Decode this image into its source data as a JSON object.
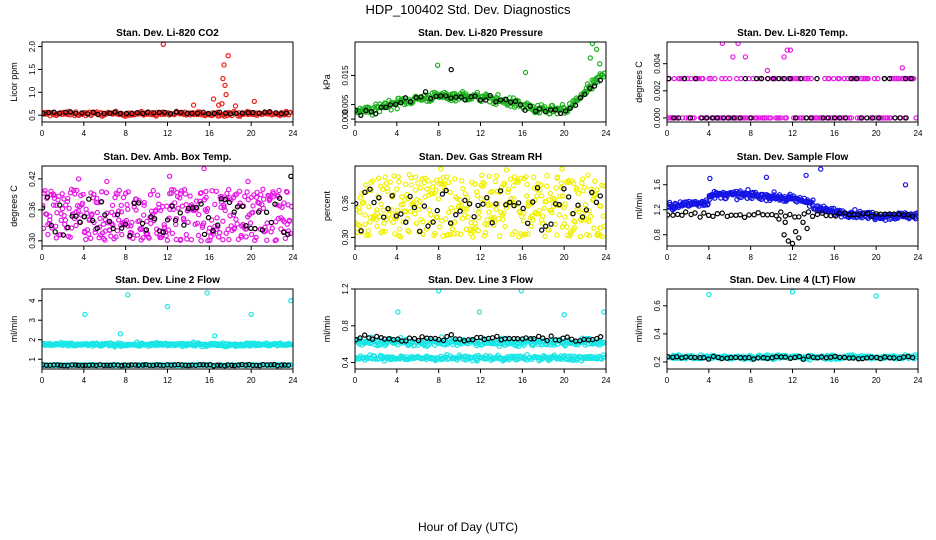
{
  "title": "HDP_100402  Std. Dev. Diagnostics",
  "xlabel": "Hour of Day (UTC)",
  "chart_data": [
    {
      "type": "scatter",
      "title": "Stan. Dev. Li-820 CO2",
      "ylabel": "Licor ppm",
      "xlim": [
        0,
        24
      ],
      "ylim": [
        0.35,
        2.1
      ],
      "xticks": [
        "0",
        "4",
        "8",
        "12",
        "16",
        "20",
        "24"
      ],
      "yticks": [
        "0.5",
        "1.0",
        "1.5",
        "2.0"
      ],
      "ytick_values": [
        0.5,
        1.0,
        1.5,
        2.0
      ],
      "series": [
        {
          "name": "main",
          "color": "#e8201c",
          "gen": {
            "kind": "noise",
            "n": 220,
            "base": 0.53,
            "amp": 0.08
          },
          "points": [
            [
              11.6,
              2.05
            ],
            [
              17.8,
              1.8
            ],
            [
              17.4,
              1.6
            ],
            [
              17.3,
              1.3
            ],
            [
              17.5,
              1.15
            ],
            [
              17.6,
              0.95
            ],
            [
              16.4,
              0.85
            ],
            [
              17.2,
              0.75
            ],
            [
              16.9,
              0.72
            ],
            [
              18.5,
              0.7
            ],
            [
              20.3,
              0.8
            ],
            [
              14.5,
              0.72
            ]
          ]
        },
        {
          "name": "reference",
          "color": "#000000",
          "gen": {
            "kind": "noise",
            "n": 45,
            "base": 0.55,
            "amp": 0.05
          },
          "points": []
        }
      ]
    },
    {
      "type": "scatter",
      "title": "Stan. Dev. Li-820 Pressure",
      "ylabel": "kPa",
      "xlim": [
        0,
        24
      ],
      "ylim": [
        -0.001,
        0.0265
      ],
      "xticks": [
        "0",
        "4",
        "8",
        "12",
        "16",
        "20",
        "24"
      ],
      "yticks": [
        "0.000",
        "0.005",
        "0.015"
      ],
      "ytick_values": [
        0.0,
        0.005,
        0.015
      ],
      "series": [
        {
          "name": "main",
          "color": "#1fb31f",
          "gen": {
            "kind": "pressure",
            "n": 300
          },
          "points": [
            [
              7.9,
              0.0185
            ],
            [
              16.3,
              0.016
            ],
            [
              22.7,
              0.026
            ],
            [
              23.1,
              0.024
            ],
            [
              22.5,
              0.021
            ],
            [
              23.4,
              0.019
            ]
          ]
        },
        {
          "name": "reference",
          "color": "#000000",
          "gen": {
            "kind": "pressure",
            "n": 50
          },
          "points": [
            [
              9.2,
              0.017
            ]
          ]
        }
      ]
    },
    {
      "type": "scatter",
      "title": "Stan. Dev. Li-820 Temp.",
      "ylabel": "degrees C",
      "xlim": [
        0,
        24
      ],
      "ylim": [
        -0.0003,
        0.0056
      ],
      "xticks": [
        "0",
        "4",
        "8",
        "12",
        "16",
        "20",
        "24"
      ],
      "yticks": [
        "0.000",
        "0.002",
        "0.004"
      ],
      "ytick_values": [
        0.0,
        0.002,
        0.004
      ],
      "series": [
        {
          "name": "main",
          "color": "#e619e6",
          "gen": {
            "kind": "temp",
            "n": 170
          },
          "points": [
            [
              5.3,
              0.0055
            ],
            [
              6.8,
              0.0055
            ],
            [
              7.5,
              0.0045
            ],
            [
              11.2,
              0.0045
            ],
            [
              11.5,
              0.005
            ],
            [
              11.8,
              0.005
            ],
            [
              9.6,
              0.0035
            ],
            [
              22.5,
              0.0037
            ],
            [
              6.3,
              0.0045
            ]
          ]
        },
        {
          "name": "reference",
          "color": "#000000",
          "gen": {
            "kind": "temp",
            "n": 45
          },
          "points": [
            [
              22.8,
              0.0029
            ]
          ]
        }
      ]
    },
    {
      "type": "scatter",
      "title": "Stan. Dev. Amb. Box Temp.",
      "ylabel": "degrees C",
      "xlim": [
        0,
        24
      ],
      "ylim": [
        0.29,
        0.445
      ],
      "xticks": [
        "0",
        "4",
        "8",
        "12",
        "16",
        "20",
        "24"
      ],
      "yticks": [
        "0.30",
        "0.36",
        "0.42"
      ],
      "ytick_values": [
        0.3,
        0.36,
        0.42
      ],
      "series": [
        {
          "name": "main",
          "color": "#e619e6",
          "gen": {
            "kind": "uniform",
            "n": 380,
            "lo": 0.3,
            "hi": 0.4
          },
          "points": [
            [
              15.5,
              0.44
            ],
            [
              3.5,
              0.42
            ],
            [
              12.2,
              0.425
            ],
            [
              6.2,
              0.415
            ],
            [
              19.7,
              0.415
            ]
          ]
        },
        {
          "name": "reference",
          "color": "#000000",
          "gen": {
            "kind": "uniform",
            "n": 60,
            "lo": 0.31,
            "hi": 0.385
          },
          "points": [
            [
              23.8,
              0.425
            ]
          ]
        }
      ]
    },
    {
      "type": "scatter",
      "title": "Stan. Dev. Gas Stream RH",
      "ylabel": "percent",
      "xlim": [
        0,
        24
      ],
      "ylim": [
        0.285,
        0.425
      ],
      "xticks": [
        "0",
        "4",
        "8",
        "12",
        "16",
        "20",
        "24"
      ],
      "yticks": [
        "0.30",
        "0.36"
      ],
      "ytick_values": [
        0.3,
        0.36
      ],
      "series": [
        {
          "name": "main",
          "color": "#f0f000",
          "gen": {
            "kind": "uniform",
            "n": 380,
            "lo": 0.3,
            "hi": 0.41
          },
          "points": [
            [
              8.2,
              0.42
            ],
            [
              14.5,
              0.418
            ],
            [
              19.8,
              0.42
            ]
          ]
        },
        {
          "name": "reference",
          "color": "#000000",
          "gen": {
            "kind": "uniform",
            "n": 55,
            "lo": 0.31,
            "hi": 0.39
          },
          "points": []
        }
      ]
    },
    {
      "type": "scatter",
      "title": "Stan. Dev. Sample Flow",
      "ylabel": "ml/min",
      "xlim": [
        0,
        24
      ],
      "ylim": [
        0.62,
        1.9
      ],
      "xticks": [
        "0",
        "4",
        "8",
        "12",
        "16",
        "20",
        "24"
      ],
      "yticks": [
        "0.8",
        "1.2",
        "1.6"
      ],
      "ytick_values": [
        0.8,
        1.2,
        1.6
      ],
      "series": [
        {
          "name": "main",
          "color": "#1414e6",
          "gen": {
            "kind": "flow",
            "n": 360
          },
          "points": [
            [
              14.7,
              1.85
            ],
            [
              13.3,
              1.75
            ],
            [
              4.1,
              1.7
            ],
            [
              9.5,
              1.72
            ],
            [
              22.8,
              1.6
            ]
          ]
        },
        {
          "name": "reference",
          "color": "#000000",
          "gen": {
            "kind": "flowref",
            "n": 55
          },
          "points": [
            [
              11.2,
              0.8
            ],
            [
              11.6,
              0.7
            ],
            [
              12.0,
              0.66
            ],
            [
              12.3,
              0.85
            ],
            [
              13.0,
              1.0
            ],
            [
              13.4,
              0.9
            ],
            [
              12.6,
              0.75
            ],
            [
              11.3,
              1.0
            ],
            [
              10.7,
              1.05
            ]
          ]
        }
      ]
    },
    {
      "type": "scatter",
      "title": "Stan. Dev. Line 2 Flow",
      "ylabel": "ml/min",
      "xlim": [
        0,
        24
      ],
      "ylim": [
        0.5,
        4.6
      ],
      "xticks": [
        "0",
        "4",
        "8",
        "12",
        "16",
        "20",
        "24"
      ],
      "yticks": [
        "1",
        "2",
        "3",
        "4"
      ],
      "ytick_values": [
        1,
        2,
        3,
        4
      ],
      "series": [
        {
          "name": "main",
          "color": "#19e6e6",
          "gen": {
            "kind": "noise",
            "n": 300,
            "base": 1.75,
            "amp": 0.15
          },
          "points": [
            [
              8.2,
              4.3
            ],
            [
              15.8,
              4.4
            ],
            [
              23.8,
              4.0
            ],
            [
              12.0,
              3.7
            ],
            [
              4.1,
              3.3
            ],
            [
              20.0,
              3.3
            ],
            [
              7.5,
              2.3
            ],
            [
              16.5,
              2.2
            ]
          ]
        },
        {
          "name": "reference",
          "color": "#000000",
          "gen": {
            "kind": "noise",
            "n": 70,
            "base": 0.7,
            "amp": 0.05
          },
          "points": []
        },
        {
          "name": "main-low",
          "color": "#19e6e6",
          "gen": {
            "kind": "noise",
            "n": 220,
            "base": 0.7,
            "amp": 0.05
          },
          "points": []
        }
      ]
    },
    {
      "type": "scatter",
      "title": "Stan. Dev. Line 3 Flow",
      "ylabel": "ml/min",
      "xlim": [
        0,
        24
      ],
      "ylim": [
        0.33,
        1.2
      ],
      "xticks": [
        "0",
        "4",
        "8",
        "12",
        "16",
        "20",
        "24"
      ],
      "yticks": [
        "0.4",
        "0.8",
        "1.2"
      ],
      "ytick_values": [
        0.4,
        0.8,
        1.2
      ],
      "series": [
        {
          "name": "main",
          "color": "#19e6e6",
          "gen": {
            "kind": "noise",
            "n": 280,
            "base": 0.62,
            "amp": 0.07
          },
          "points": [
            [
              8.0,
              1.18
            ],
            [
              15.9,
              1.18
            ],
            [
              4.1,
              0.95
            ],
            [
              11.9,
              0.95
            ],
            [
              23.8,
              0.95
            ],
            [
              20.0,
              0.92
            ]
          ]
        },
        {
          "name": "main-low",
          "color": "#19e6e6",
          "gen": {
            "kind": "noise",
            "n": 260,
            "base": 0.45,
            "amp": 0.05
          },
          "points": []
        },
        {
          "name": "reference",
          "color": "#000000",
          "gen": {
            "kind": "noise",
            "n": 60,
            "base": 0.66,
            "amp": 0.05
          },
          "points": []
        }
      ]
    },
    {
      "type": "scatter",
      "title": "Stan. Dev. Line 4 (LT) Flow",
      "ylabel": "ml/min",
      "xlim": [
        0,
        24
      ],
      "ylim": [
        0.15,
        0.72
      ],
      "xticks": [
        "0",
        "4",
        "8",
        "12",
        "16",
        "20",
        "24"
      ],
      "yticks": [
        "0.2",
        "0.4",
        "0.6"
      ],
      "ytick_values": [
        0.2,
        0.4,
        0.6
      ],
      "series": [
        {
          "name": "main",
          "color": "#19e6e6",
          "gen": {
            "kind": "noise",
            "n": 300,
            "base": 0.235,
            "amp": 0.025
          },
          "points": [
            [
              4.0,
              0.68
            ],
            [
              12.0,
              0.7
            ],
            [
              20.0,
              0.67
            ]
          ]
        },
        {
          "name": "reference",
          "color": "#000000",
          "gen": {
            "kind": "noise",
            "n": 55,
            "base": 0.23,
            "amp": 0.02
          },
          "points": []
        }
      ]
    }
  ]
}
